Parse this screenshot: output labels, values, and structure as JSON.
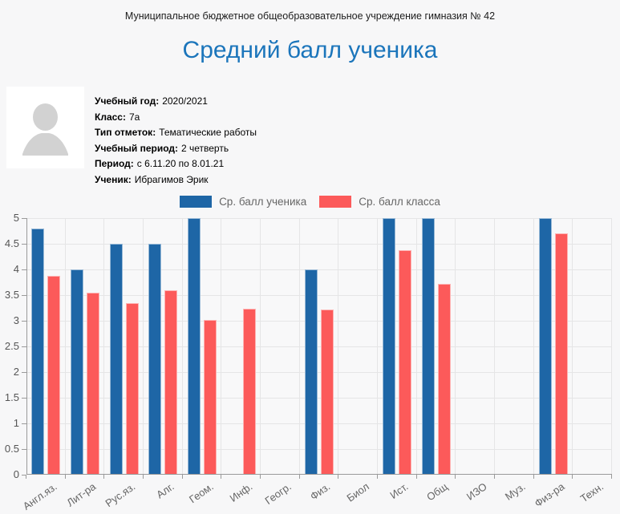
{
  "header": {
    "org_name": "Муниципальное бюджетное общеобразовательное учреждение гимназия № 42",
    "title": "Средний балл ученика"
  },
  "student_info": {
    "fields": [
      {
        "label": "Учебный год:",
        "value": "2020/2021"
      },
      {
        "label": "Класс:",
        "value": "7а"
      },
      {
        "label": "Тип отметок:",
        "value": "Тематические работы"
      },
      {
        "label": "Учебный период:",
        "value": "2 четверть"
      },
      {
        "label": "Период:",
        "value": "с 6.11.20 по 8.01.21"
      },
      {
        "label": "Ученик:",
        "value": "Ибрагимов Эрик"
      }
    ]
  },
  "icons": {
    "avatar": "person-silhouette-icon"
  },
  "colors": {
    "title_blue": "#1b75bb",
    "page_background": "#f7f7f8",
    "student_series": "#1e66a6",
    "class_series": "#fc5a5a"
  },
  "chart_data": {
    "type": "bar",
    "title": "Средний балл ученика",
    "xlabel": "",
    "ylabel": "",
    "ylim": [
      0,
      5
    ],
    "ytick_step": 0.5,
    "yticks": [
      "0",
      "0.5",
      "1",
      "1.5",
      "2",
      "2.5",
      "3",
      "3.5",
      "4",
      "4.5",
      "5"
    ],
    "grid": true,
    "legend_position": "top-center",
    "categories": [
      "Англ.яз.",
      "Лит-ра",
      "Рус.яз.",
      "Алг.",
      "Геом.",
      "Инф.",
      "Геогр.",
      "Физ.",
      "Биол",
      "Ист.",
      "Общ",
      "ИЗО",
      "Муз.",
      "Физ-ра",
      "Техн."
    ],
    "series": [
      {
        "name": "Ср. балл ученика",
        "color": "#1e66a6",
        "values": [
          4.8,
          4.0,
          4.5,
          4.5,
          5.0,
          null,
          null,
          4.0,
          null,
          5.0,
          5.0,
          null,
          null,
          5.0,
          null
        ]
      },
      {
        "name": "Ср. балл класса",
        "color": "#fc5a5a",
        "values": [
          3.88,
          3.55,
          3.35,
          3.59,
          3.02,
          3.24,
          null,
          3.22,
          null,
          4.38,
          3.72,
          null,
          null,
          4.71,
          null
        ]
      }
    ]
  }
}
